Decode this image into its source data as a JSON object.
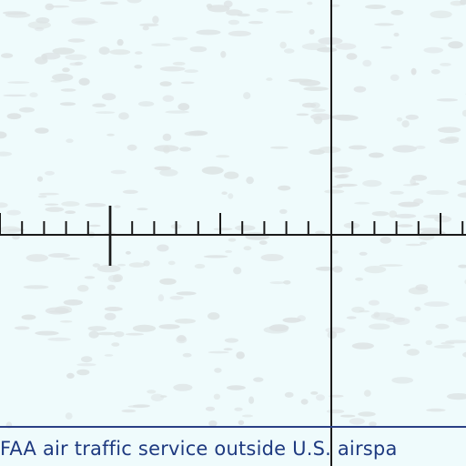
{
  "map": {
    "background_color": "#effbfc",
    "texture_color": "#dde3e4",
    "line_color": "#1a1a1a",
    "boundary_color": "#2a3f85"
  },
  "airspace_boundary": {
    "label": "FAA air traffic service outside U.S. airspa",
    "text_color": "#1e3a80"
  }
}
